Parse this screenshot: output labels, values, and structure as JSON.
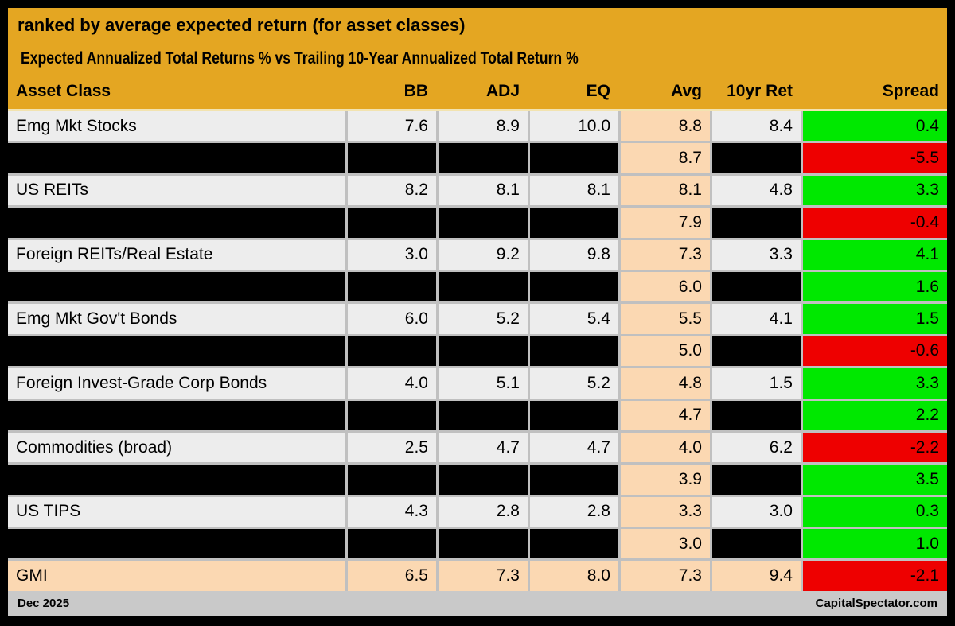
{
  "title": "ranked by average expected return (for asset classes)",
  "subtitle": "Expected Annualized Total Returns % vs Trailing 10-Year Annualized Total Return %",
  "footer": {
    "left": "Dec 2025",
    "right": "CapitalSpectator.com"
  },
  "colors": {
    "gold_header": "#E4A622",
    "row_bg": "#EDEDED",
    "avg_column_bg": "#FBD8B2",
    "highlight_row_bg": "#FBD8B2",
    "redacted_bg": "#000000",
    "spread_positive": "#00E800",
    "spread_negative": "#EE0000",
    "gridline": "#C0C0C0",
    "footer_bg": "#C9C9C9"
  },
  "chart_data": {
    "type": "table",
    "columns": [
      "Asset Class",
      "BB",
      "ADJ",
      "EQ",
      "Avg",
      "10yr Ret",
      "Spread"
    ],
    "rows": [
      {
        "asset": "Emg Mkt Stocks",
        "bb": "7.6",
        "adj": "8.9",
        "eq": "10.0",
        "avg": "8.8",
        "ret10": "8.4",
        "spread": "0.4",
        "spread_color": "green",
        "redacted": false,
        "highlight": false
      },
      {
        "asset": "",
        "bb": "",
        "adj": "",
        "eq": "",
        "avg": "8.7",
        "ret10": "",
        "spread": "-5.5",
        "spread_color": "red",
        "redacted": true,
        "highlight": false
      },
      {
        "asset": "US REITs",
        "bb": "8.2",
        "adj": "8.1",
        "eq": "8.1",
        "avg": "8.1",
        "ret10": "4.8",
        "spread": "3.3",
        "spread_color": "green",
        "redacted": false,
        "highlight": false
      },
      {
        "asset": "",
        "bb": "",
        "adj": "",
        "eq": "",
        "avg": "7.9",
        "ret10": "",
        "spread": "-0.4",
        "spread_color": "red",
        "redacted": true,
        "highlight": false
      },
      {
        "asset": "Foreign REITs/Real Estate",
        "bb": "3.0",
        "adj": "9.2",
        "eq": "9.8",
        "avg": "7.3",
        "ret10": "3.3",
        "spread": "4.1",
        "spread_color": "green",
        "redacted": false,
        "highlight": false
      },
      {
        "asset": "",
        "bb": "",
        "adj": "",
        "eq": "",
        "avg": "6.0",
        "ret10": "",
        "spread": "1.6",
        "spread_color": "green",
        "redacted": true,
        "highlight": false
      },
      {
        "asset": "Emg Mkt Gov't Bonds",
        "bb": "6.0",
        "adj": "5.2",
        "eq": "5.4",
        "avg": "5.5",
        "ret10": "4.1",
        "spread": "1.5",
        "spread_color": "green",
        "redacted": false,
        "highlight": false
      },
      {
        "asset": "",
        "bb": "",
        "adj": "",
        "eq": "",
        "avg": "5.0",
        "ret10": "",
        "spread": "-0.6",
        "spread_color": "red",
        "redacted": true,
        "highlight": false
      },
      {
        "asset": "Foreign Invest-Grade Corp Bonds",
        "bb": "4.0",
        "adj": "5.1",
        "eq": "5.2",
        "avg": "4.8",
        "ret10": "1.5",
        "spread": "3.3",
        "spread_color": "green",
        "redacted": false,
        "highlight": false
      },
      {
        "asset": "",
        "bb": "",
        "adj": "",
        "eq": "",
        "avg": "4.7",
        "ret10": "",
        "spread": "2.2",
        "spread_color": "green",
        "redacted": true,
        "highlight": false
      },
      {
        "asset": "Commodities (broad)",
        "bb": "2.5",
        "adj": "4.7",
        "eq": "4.7",
        "avg": "4.0",
        "ret10": "6.2",
        "spread": "-2.2",
        "spread_color": "red",
        "redacted": false,
        "highlight": false
      },
      {
        "asset": "",
        "bb": "",
        "adj": "",
        "eq": "",
        "avg": "3.9",
        "ret10": "",
        "spread": "3.5",
        "spread_color": "green",
        "redacted": true,
        "highlight": false
      },
      {
        "asset": "US TIPS",
        "bb": "4.3",
        "adj": "2.8",
        "eq": "2.8",
        "avg": "3.3",
        "ret10": "3.0",
        "spread": "0.3",
        "spread_color": "green",
        "redacted": false,
        "highlight": false
      },
      {
        "asset": "",
        "bb": "",
        "adj": "",
        "eq": "",
        "avg": "3.0",
        "ret10": "",
        "spread": "1.0",
        "spread_color": "green",
        "redacted": true,
        "highlight": false
      },
      {
        "asset": "GMI",
        "bb": "6.5",
        "adj": "7.3",
        "eq": "8.0",
        "avg": "7.3",
        "ret10": "9.4",
        "spread": "-2.1",
        "spread_color": "red",
        "redacted": false,
        "highlight": true
      }
    ]
  }
}
